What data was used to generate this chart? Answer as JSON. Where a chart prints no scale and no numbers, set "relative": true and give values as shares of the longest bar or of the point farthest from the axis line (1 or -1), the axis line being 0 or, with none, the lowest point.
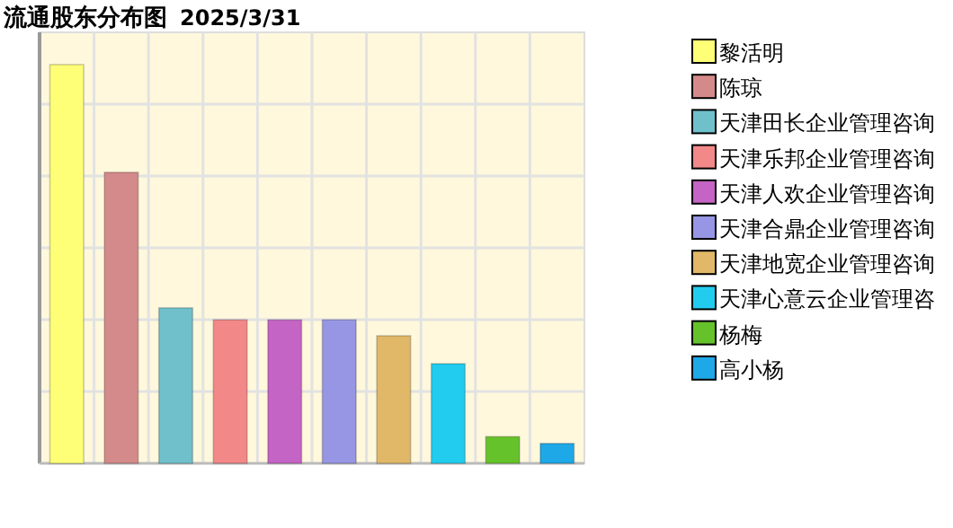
{
  "chart_data": {
    "type": "bar",
    "title": "流通股东分布图",
    "subtitle": "2025/3/31",
    "relative": true,
    "stacked": true,
    "grid": true,
    "legend": "right",
    "categories": [
      null,
      null,
      null,
      null,
      null,
      null,
      null,
      null,
      null,
      null
    ],
    "series": [
      {
        "name": "黎活明",
        "color": "#ffff77",
        "values": [
          1,
          null,
          null,
          null,
          null,
          null,
          null,
          null,
          null,
          null
        ]
      },
      {
        "name": "陈琼",
        "color": "#d48a8a",
        "values": [
          null,
          0.73,
          null,
          null,
          null,
          null,
          null,
          null,
          null,
          null
        ]
      },
      {
        "name": "天津田长企业管理咨询",
        "color": "#70c0cc",
        "values": [
          null,
          null,
          0.39,
          null,
          null,
          null,
          null,
          null,
          null,
          null
        ]
      },
      {
        "name": "天津乐邦企业管理咨询",
        "color": "#f28888",
        "values": [
          null,
          null,
          null,
          0.36,
          null,
          null,
          null,
          null,
          null,
          null
        ]
      },
      {
        "name": "天津人欢企业管理咨询",
        "color": "#c464c4",
        "values": [
          null,
          null,
          null,
          null,
          0.36,
          null,
          null,
          null,
          null,
          null
        ]
      },
      {
        "name": "天津合鼎企业管理咨询",
        "color": "#9696e4",
        "values": [
          null,
          null,
          null,
          null,
          null,
          0.36,
          null,
          null,
          null,
          null
        ]
      },
      {
        "name": "天津地宽企业管理咨询",
        "color": "#e0b868",
        "values": [
          null,
          null,
          null,
          null,
          null,
          null,
          0.32,
          null,
          null,
          null
        ]
      },
      {
        "name": "天津心意云企业管理咨",
        "color": "#22ccee",
        "values": [
          null,
          null,
          null,
          null,
          null,
          null,
          null,
          0.25,
          null,
          null
        ]
      },
      {
        "name": "杨梅",
        "color": "#66c22a",
        "values": [
          null,
          null,
          null,
          null,
          null,
          null,
          null,
          null,
          0.067,
          null
        ]
      },
      {
        "name": "高小杨",
        "color": "#1ea8e8",
        "values": [
          null,
          null,
          null,
          null,
          null,
          null,
          null,
          null,
          null,
          0.05
        ]
      }
    ]
  }
}
